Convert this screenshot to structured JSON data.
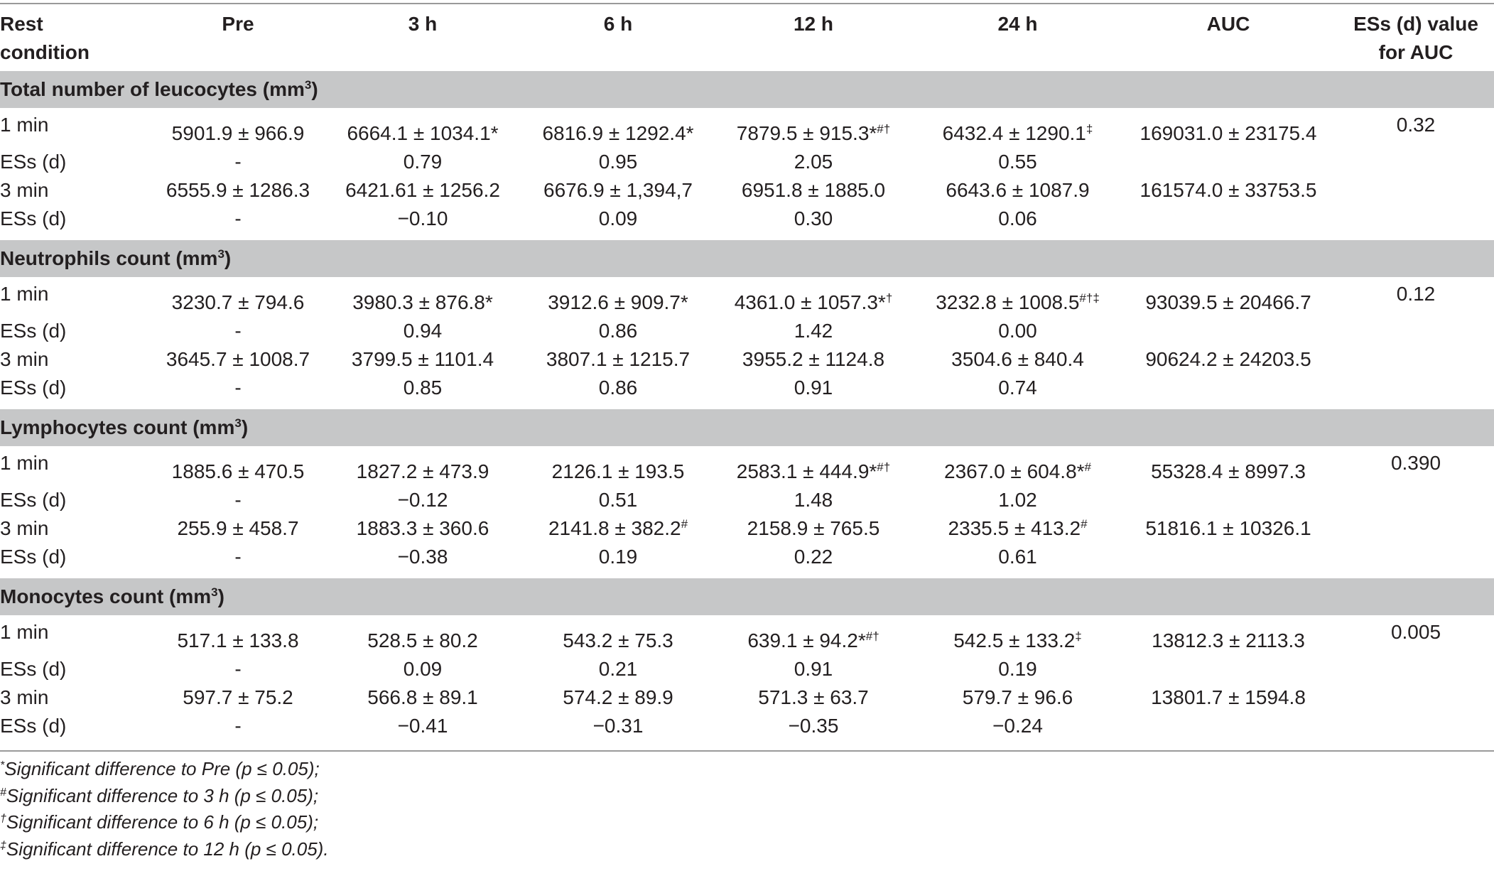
{
  "header": {
    "rest_condition": [
      "Rest",
      "condition"
    ],
    "pre": "Pre",
    "h3": "3 h",
    "h6": "6 h",
    "h12": "12 h",
    "h24": "24 h",
    "auc": "AUC",
    "es_auc": [
      "ESs (d) value",
      "for AUC"
    ]
  },
  "sections": [
    {
      "title": "Total number of leucocytes (mm",
      "title_sup": "3",
      "title_end": ")",
      "rows": [
        {
          "label": "1 min",
          "pre": "5901.9 ± 966.9",
          "h3": "6664.1 ± 1034.1*",
          "h3_sup": "",
          "h6": "6816.9 ± 1292.4*",
          "h6_sup": "",
          "h12": "7879.5 ± 915.3*",
          "h12_sup": "#†",
          "h24": "6432.4 ± 1290.1",
          "h24_sup": "‡",
          "auc": "169031.0 ± 23175.4",
          "es_auc": "0.32"
        },
        {
          "label": "ESs (d)",
          "pre": "-",
          "h3": "0.79",
          "h3_sup": "",
          "h6": "0.95",
          "h6_sup": "",
          "h12": "2.05",
          "h12_sup": "",
          "h24": "0.55",
          "h24_sup": "",
          "auc": "",
          "es_auc": ""
        },
        {
          "label": "3 min",
          "pre": "6555.9 ± 1286.3",
          "h3": "6421.61 ± 1256.2",
          "h3_sup": "",
          "h6": "6676.9 ± 1,394,7",
          "h6_sup": "",
          "h12": "6951.8 ± 1885.0",
          "h12_sup": "",
          "h24": "6643.6 ± 1087.9",
          "h24_sup": "",
          "auc": "161574.0 ± 33753.5",
          "es_auc": ""
        },
        {
          "label": "ESs (d)",
          "pre": "-",
          "h3": "−0.10",
          "h3_sup": "",
          "h6": "0.09",
          "h6_sup": "",
          "h12": "0.30",
          "h12_sup": "",
          "h24": "0.06",
          "h24_sup": "",
          "auc": "",
          "es_auc": ""
        }
      ]
    },
    {
      "title": "Neutrophils count (mm",
      "title_sup": "3",
      "title_end": ")",
      "rows": [
        {
          "label": "1 min",
          "pre": "3230.7 ± 794.6",
          "h3": "3980.3 ± 876.8*",
          "h3_sup": "",
          "h6": "3912.6 ± 909.7*",
          "h6_sup": "",
          "h12": "4361.0 ± 1057.3*",
          "h12_sup": "†",
          "h24": "3232.8 ± 1008.5",
          "h24_sup": "#†‡",
          "auc": "93039.5 ± 20466.7",
          "es_auc": "0.12"
        },
        {
          "label": "ESs (d)",
          "pre": "-",
          "h3": "0.94",
          "h3_sup": "",
          "h6": "0.86",
          "h6_sup": "",
          "h12": "1.42",
          "h12_sup": "",
          "h24": "0.00",
          "h24_sup": "",
          "auc": "",
          "es_auc": ""
        },
        {
          "label": "3 min",
          "pre": "3645.7 ± 1008.7",
          "h3": "3799.5 ± 1101.4",
          "h3_sup": "",
          "h6": "3807.1 ± 1215.7",
          "h6_sup": "",
          "h12": "3955.2 ± 1124.8",
          "h12_sup": "",
          "h24": "3504.6 ± 840.4",
          "h24_sup": "",
          "auc": "90624.2 ± 24203.5",
          "es_auc": ""
        },
        {
          "label": "ESs (d)",
          "pre": "-",
          "h3": "0.85",
          "h3_sup": "",
          "h6": "0.86",
          "h6_sup": "",
          "h12": "0.91",
          "h12_sup": "",
          "h24": "0.74",
          "h24_sup": "",
          "auc": "",
          "es_auc": ""
        }
      ]
    },
    {
      "title": "Lymphocytes count (mm",
      "title_sup": "3",
      "title_end": ")",
      "rows": [
        {
          "label": "1 min",
          "pre": "1885.6 ± 470.5",
          "h3": "1827.2 ± 473.9",
          "h3_sup": "",
          "h6": "2126.1 ± 193.5",
          "h6_sup": "",
          "h12": "2583.1 ± 444.9*",
          "h12_sup": "#†",
          "h24": "2367.0 ± 604.8*",
          "h24_sup": "#",
          "auc": "55328.4 ± 8997.3",
          "es_auc": "0.390"
        },
        {
          "label": "ESs (d)",
          "pre": "-",
          "h3": "−0.12",
          "h3_sup": "",
          "h6": "0.51",
          "h6_sup": "",
          "h12": "1.48",
          "h12_sup": "",
          "h24": "1.02",
          "h24_sup": "",
          "auc": "",
          "es_auc": ""
        },
        {
          "label": "3 min",
          "pre": "255.9 ± 458.7",
          "h3": "1883.3 ± 360.6",
          "h3_sup": "",
          "h6": "2141.8 ± 382.2",
          "h6_sup": "#",
          "h12": "2158.9 ± 765.5",
          "h12_sup": "",
          "h24": "2335.5 ± 413.2",
          "h24_sup": "#",
          "auc": "51816.1 ± 10326.1",
          "es_auc": ""
        },
        {
          "label": "ESs (d)",
          "pre": "-",
          "h3": "−0.38",
          "h3_sup": "",
          "h6": "0.19",
          "h6_sup": "",
          "h12": "0.22",
          "h12_sup": "",
          "h24": "0.61",
          "h24_sup": "",
          "auc": "",
          "es_auc": ""
        }
      ]
    },
    {
      "title": "Monocytes count (mm",
      "title_sup": "3",
      "title_end": ")",
      "rows": [
        {
          "label": "1 min",
          "pre": "517.1 ± 133.8",
          "h3": "528.5 ± 80.2",
          "h3_sup": "",
          "h6": "543.2 ± 75.3",
          "h6_sup": "",
          "h12": "639.1 ± 94.2*",
          "h12_sup": "#†",
          "h24": "542.5 ± 133.2",
          "h24_sup": "‡",
          "auc": "13812.3 ± 2113.3",
          "es_auc": "0.005"
        },
        {
          "label": "ESs (d)",
          "pre": "-",
          "h3": "0.09",
          "h3_sup": "",
          "h6": "0.21",
          "h6_sup": "",
          "h12": "0.91",
          "h12_sup": "",
          "h24": "0.19",
          "h24_sup": "",
          "auc": "",
          "es_auc": ""
        },
        {
          "label": "3 min",
          "pre": "597.7 ± 75.2",
          "h3": "566.8 ± 89.1",
          "h3_sup": "",
          "h6": "574.2 ± 89.9",
          "h6_sup": "",
          "h12": "571.3 ± 63.7",
          "h12_sup": "",
          "h24": "579.7 ± 96.6",
          "h24_sup": "",
          "auc": "13801.7 ± 1594.8",
          "es_auc": ""
        },
        {
          "label": "ESs (d)",
          "pre": "-",
          "h3": "−0.41",
          "h3_sup": "",
          "h6": "−0.31",
          "h6_sup": "",
          "h12": "−0.35",
          "h12_sup": "",
          "h24": "−0.24",
          "h24_sup": "",
          "auc": "",
          "es_auc": ""
        }
      ]
    }
  ],
  "footnotes": [
    {
      "mark": "*",
      "text": "Significant difference to Pre (p ≤ 0.05);"
    },
    {
      "mark": "#",
      "text": "Significant difference to 3 h (p ≤ 0.05);"
    },
    {
      "mark": "†",
      "text": "Significant difference to 6 h (p ≤ 0.05);"
    },
    {
      "mark": "‡",
      "text": "Significant difference to 12 h (p ≤ 0.05)."
    }
  ]
}
